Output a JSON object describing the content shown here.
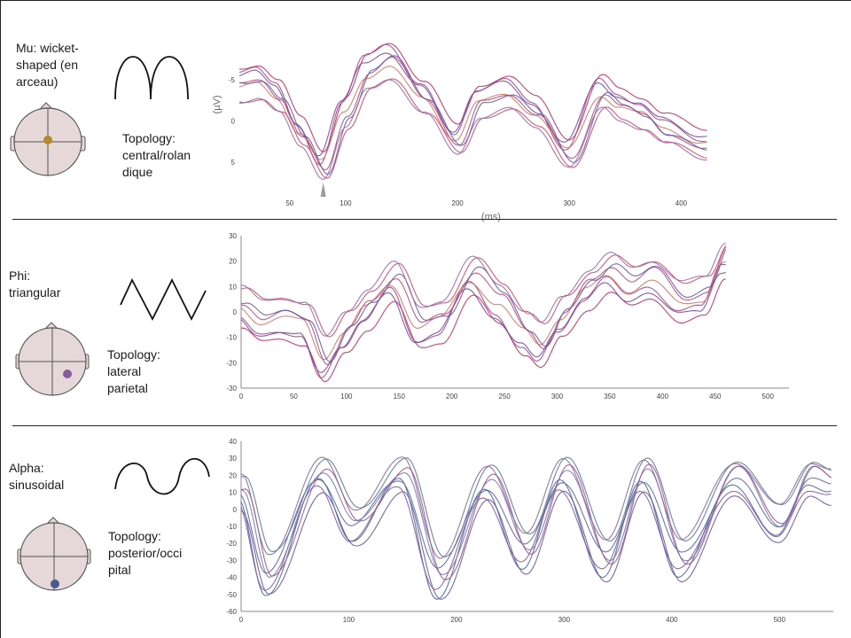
{
  "panels": [
    {
      "id": "mu",
      "title_lines": [
        "Mu: wicket-",
        "shaped (en",
        "arceau)"
      ],
      "topology_lines": [
        "Topology:",
        "central/rolan",
        "dique"
      ],
      "electrode_color": "#b58a2a",
      "axis": {
        "xlabel": "(ms)",
        "ylabel": "(µV)",
        "x_ticks": [
          50,
          100,
          200,
          300,
          400
        ],
        "y_ticks": [
          -5,
          0,
          5
        ],
        "x_range": [
          5,
          425
        ],
        "y_range": [
          -9,
          9
        ],
        "y_inverted": true,
        "stimulus_marker_ms": 80
      }
    },
    {
      "id": "phi",
      "title_lines": [
        "Phi:",
        "triangular"
      ],
      "topology_lines": [
        "Topology:",
        "lateral",
        "parietal"
      ],
      "electrode_color": "#8a5a9e",
      "axis": {
        "x_ticks": [
          0,
          50,
          100,
          150,
          200,
          250,
          300,
          350,
          400,
          450,
          500
        ],
        "y_ticks": [
          30,
          20,
          10,
          0,
          -10,
          -20,
          -30
        ],
        "x_range": [
          0,
          520
        ],
        "y_range": [
          -30,
          30
        ]
      }
    },
    {
      "id": "alpha",
      "title_lines": [
        "Alpha:",
        "sinusoidal"
      ],
      "topology_lines": [
        "Topology:",
        "posterior/occi",
        "pital"
      ],
      "electrode_color": "#4a5a8e",
      "axis": {
        "x_ticks": [
          0,
          100,
          200,
          300,
          400,
          500
        ],
        "y_ticks": [
          40,
          30,
          20,
          10,
          0,
          -10,
          -20,
          -30,
          -40,
          -50,
          -60
        ],
        "x_range": [
          0,
          550
        ],
        "y_range": [
          -60,
          40
        ]
      }
    }
  ],
  "colors": {
    "traces": [
      "#c0306a",
      "#a24a8c",
      "#7a4aa0",
      "#d27a66",
      "#b0507a",
      "#6a5aa8",
      "#d04a6a",
      "#9a6ab0"
    ],
    "alpha_traces": [
      "#6a5aa8",
      "#4a6a9a",
      "#8a5a9e",
      "#5a6aa0",
      "#7a7ab0",
      "#9a5a8e",
      "#5a7a9a",
      "#8a6aa0"
    ]
  }
}
